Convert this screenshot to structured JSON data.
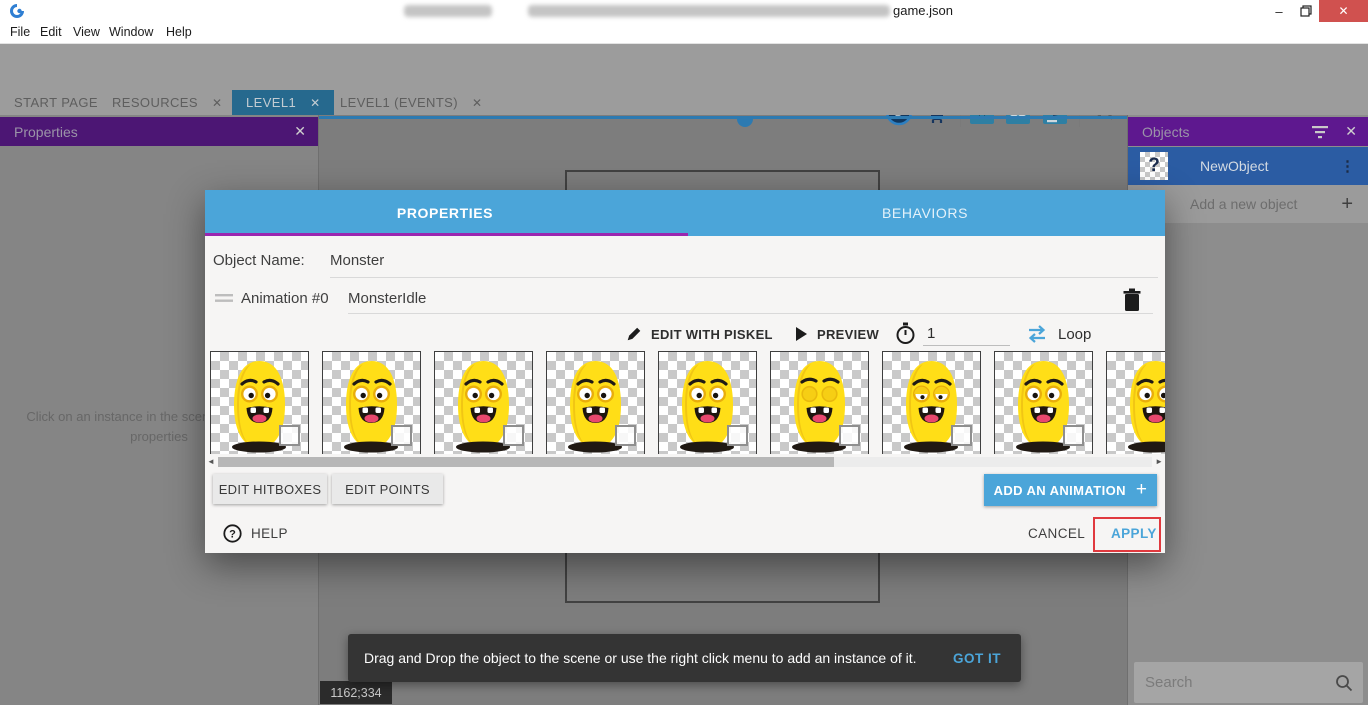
{
  "window": {
    "title_document": "game.json"
  },
  "menu_bar": {
    "items": [
      "File",
      "Edit",
      "View",
      "Window",
      "Help"
    ]
  },
  "tabs": [
    {
      "label": "START PAGE",
      "closable": false,
      "active": false
    },
    {
      "label": "RESOURCES",
      "closable": true,
      "active": false
    },
    {
      "label": "LEVEL1",
      "closable": true,
      "active": true
    },
    {
      "label": "LEVEL1 (EVENTS)",
      "closable": true,
      "active": false
    }
  ],
  "properties_panel": {
    "title": "Properties",
    "empty_message": "Click on an instance in the scene to display its properties"
  },
  "objects_panel": {
    "title": "Objects",
    "objects": [
      {
        "name": "NewObject"
      }
    ],
    "add_label": "Add a new object",
    "search_placeholder": "Search"
  },
  "canvas": {
    "coordinates": "1162;334"
  },
  "dialog": {
    "tabs": [
      {
        "label": "PROPERTIES",
        "active": true
      },
      {
        "label": "BEHAVIORS",
        "active": false
      }
    ],
    "object_name_label": "Object Name:",
    "object_name_value": "Monster",
    "animation": {
      "label": "Animation #0",
      "name": "MonsterIdle"
    },
    "controls": {
      "edit_piskel": "EDIT WITH PISKEL",
      "preview": "PREVIEW",
      "time_value": "1",
      "loop": "Loop"
    },
    "frames": [
      {
        "eyes": "open"
      },
      {
        "eyes": "open"
      },
      {
        "eyes": "open"
      },
      {
        "eyes": "open"
      },
      {
        "eyes": "open"
      },
      {
        "eyes": "closed"
      },
      {
        "eyes": "half"
      },
      {
        "eyes": "open"
      },
      {
        "eyes": "open"
      }
    ],
    "buttons": {
      "edit_hitboxes": "EDIT HITBOXES",
      "edit_points": "EDIT POINTS",
      "add_animation": "ADD AN ANIMATION",
      "help": "HELP",
      "cancel": "CANCEL",
      "apply": "APPLY"
    }
  },
  "snackbar": {
    "message": "Drag and Drop the object to the scene or use the right click menu to add an instance of it.",
    "action": "GOT IT"
  },
  "glyphs": {
    "close_x": "✕",
    "minimize": "–",
    "dots_vertical": "⋮",
    "plus": "+",
    "scroll_left": "◄",
    "scroll_right": "►"
  },
  "colors": {
    "accent_blue": "#4BA5D9",
    "tab_active_teal": "#26698E",
    "properties_header_purple": "#4C1674",
    "objects_header_purple": "#5E188F",
    "properties_underline_purple": "#9B26AF",
    "selection_blue": "#2B5CA3",
    "annotation_red": "#E0393E",
    "monster_yellow": "#FFDE17",
    "snackbar_bg": "#343434",
    "close_button_red": "#D0514F"
  }
}
